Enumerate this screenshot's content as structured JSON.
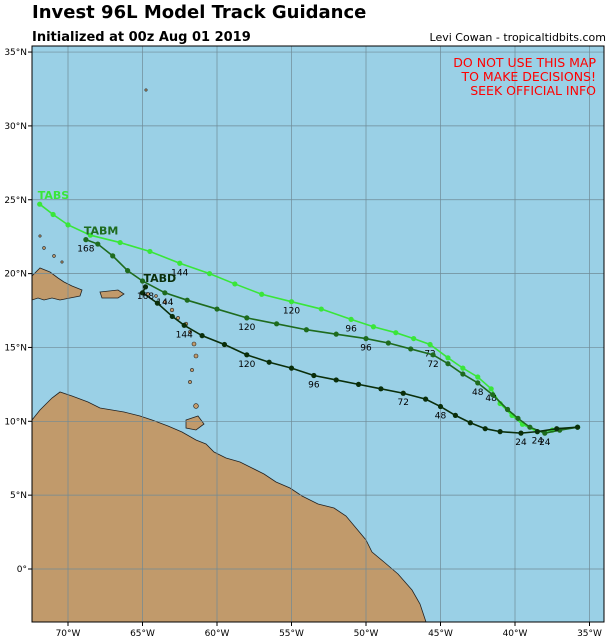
{
  "title": "Invest 96L Model Track Guidance",
  "subtitle": "Initialized at 00z Aug 01 2019",
  "credit": "Levi Cowan - tropicaltidbits.com",
  "warning": [
    "DO NOT USE THIS MAP",
    "TO MAKE DECISIONS!",
    "SEEK OFFICIAL INFO"
  ],
  "lat_labels": [
    "35°N",
    "30°N",
    "25°N",
    "20°N",
    "15°N",
    "10°N",
    "5°N",
    "0°"
  ],
  "lon_labels": [
    "70°W",
    "65°W",
    "60°W",
    "55°W",
    "50°W",
    "45°W",
    "40°W",
    "35°W"
  ],
  "colors": {
    "ocean": "#9ad0e6",
    "land": "#c19a6b",
    "grid": "#6f8a96",
    "tabs": "#39e639",
    "tabm": "#1e6b1e",
    "tabd": "#0a2e0a"
  },
  "tracks": [
    {
      "name": "TABS",
      "color": "#39e639",
      "points": [
        [
          -35.8,
          9.6
        ],
        [
          -37.5,
          9.4
        ],
        [
          -38.5,
          9.3
        ],
        [
          -39.5,
          9.8
        ],
        [
          -40.2,
          10.4
        ],
        [
          -41,
          11.2
        ],
        [
          -41.6,
          12.2
        ],
        [
          -42.5,
          13
        ],
        [
          -43.5,
          13.6
        ],
        [
          -44.5,
          14.3
        ],
        [
          -45.7,
          15.2
        ],
        [
          -46.8,
          15.6
        ],
        [
          -48,
          16
        ],
        [
          -49.5,
          16.4
        ],
        [
          -51,
          16.9
        ],
        [
          -53,
          17.6
        ],
        [
          -55,
          18.1
        ],
        [
          -57,
          18.6
        ],
        [
          -58.8,
          19.3
        ],
        [
          -60.5,
          20
        ],
        [
          -62.5,
          20.7
        ],
        [
          -64.5,
          21.5
        ],
        [
          -66.5,
          22.1
        ],
        [
          -68.5,
          22.6
        ],
        [
          -70,
          23.3
        ],
        [
          -71,
          24
        ],
        [
          -71.9,
          24.7
        ]
      ],
      "labels": [
        {
          "t": "24",
          "i": 2
        },
        {
          "t": "48",
          "i": 6
        },
        {
          "t": "72",
          "i": 10
        },
        {
          "t": "96",
          "i": 14
        },
        {
          "t": "120",
          "i": 16
        },
        {
          "t": "144",
          "i": 20
        }
      ]
    },
    {
      "name": "TABM",
      "color": "#1e6b1e",
      "points": [
        [
          -35.8,
          9.6
        ],
        [
          -37,
          9.4
        ],
        [
          -38,
          9.2
        ],
        [
          -39,
          9.6
        ],
        [
          -39.8,
          10.2
        ],
        [
          -40.5,
          10.8
        ],
        [
          -41.5,
          11.8
        ],
        [
          -42.5,
          12.6
        ],
        [
          -43.5,
          13.2
        ],
        [
          -44.5,
          13.9
        ],
        [
          -45.5,
          14.5
        ],
        [
          -47,
          14.9
        ],
        [
          -48.5,
          15.3
        ],
        [
          -50,
          15.6
        ],
        [
          -52,
          15.9
        ],
        [
          -54,
          16.2
        ],
        [
          -56,
          16.6
        ],
        [
          -58,
          17
        ],
        [
          -60,
          17.6
        ],
        [
          -62,
          18.2
        ],
        [
          -63.5,
          18.7
        ],
        [
          -65,
          19.5
        ],
        [
          -66,
          20.2
        ],
        [
          -67,
          21.2
        ],
        [
          -68,
          22
        ],
        [
          -68.8,
          22.3
        ]
      ],
      "labels": [
        {
          "t": "24",
          "i": 2
        },
        {
          "t": "48",
          "i": 7
        },
        {
          "t": "72",
          "i": 10
        },
        {
          "t": "96",
          "i": 13
        },
        {
          "t": "120",
          "i": 17
        },
        {
          "t": "144",
          "i": 20
        },
        {
          "t": "168",
          "i": 25
        }
      ]
    },
    {
      "name": "TABD",
      "color": "#0a2e0a",
      "points": [
        [
          -35.8,
          9.6
        ],
        [
          -37.2,
          9.5
        ],
        [
          -38.5,
          9.3
        ],
        [
          -39.6,
          9.2
        ],
        [
          -41,
          9.3
        ],
        [
          -42,
          9.5
        ],
        [
          -43,
          9.9
        ],
        [
          -44,
          10.4
        ],
        [
          -45,
          11
        ],
        [
          -46,
          11.5
        ],
        [
          -47.5,
          11.9
        ],
        [
          -49,
          12.2
        ],
        [
          -50.5,
          12.5
        ],
        [
          -52,
          12.8
        ],
        [
          -53.5,
          13.1
        ],
        [
          -55,
          13.6
        ],
        [
          -56.5,
          14
        ],
        [
          -58,
          14.5
        ],
        [
          -59.5,
          15.2
        ],
        [
          -61,
          15.8
        ],
        [
          -62.2,
          16.5
        ],
        [
          -63,
          17.1
        ],
        [
          -64,
          18
        ],
        [
          -65,
          18.7
        ],
        [
          -64.8,
          19.1
        ]
      ],
      "labels": [
        {
          "t": "24",
          "i": 3
        },
        {
          "t": "48",
          "i": 8
        },
        {
          "t": "72",
          "i": 10
        },
        {
          "t": "96",
          "i": 14
        },
        {
          "t": "120",
          "i": 17
        },
        {
          "t": "144",
          "i": 20
        },
        {
          "t": "168",
          "i": 24
        }
      ]
    }
  ]
}
